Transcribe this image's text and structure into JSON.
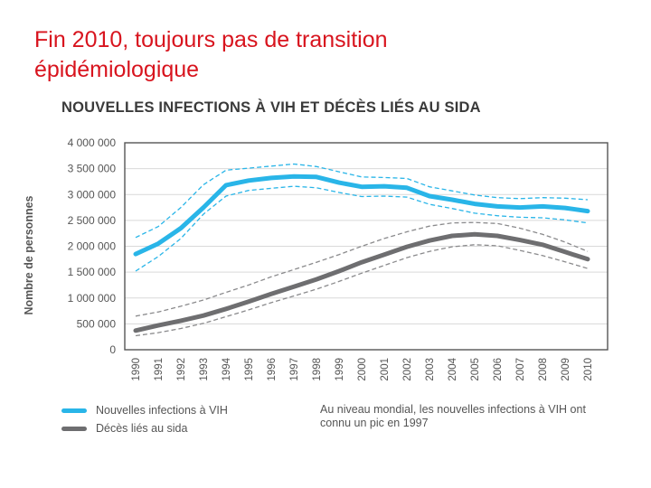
{
  "slide": {
    "title_line1": "Fin 2010, toujours pas de transition",
    "title_line2": "épidémiologique"
  },
  "chart_data": {
    "type": "line",
    "title": "NOUVELLES INFECTIONS À VIH ET DÉCÈS LIÉS AU SIDA",
    "xlabel": "",
    "ylabel": "Nombre de personnes",
    "ylim": [
      0,
      4000000
    ],
    "y_ticks": [
      0,
      500000,
      1000000,
      1500000,
      2000000,
      2500000,
      3000000,
      3500000,
      4000000
    ],
    "y_tick_labels": [
      "0",
      "500 000",
      "1 000 000",
      "1 500 000",
      "2 000 000",
      "2 500 000",
      "3 000 000",
      "3 500 000",
      "4 000 000"
    ],
    "categories": [
      "1990",
      "1991",
      "1992",
      "1993",
      "1994",
      "1995",
      "1996",
      "1997",
      "1998",
      "1999",
      "2000",
      "2001",
      "2002",
      "2003",
      "2004",
      "2005",
      "2006",
      "2007",
      "2008",
      "2009",
      "2010"
    ],
    "grid": "horizontal",
    "series": [
      {
        "name": "Nouvelles infections à VIH",
        "color": "#29b5e8",
        "values": [
          1850000,
          2050000,
          2350000,
          2750000,
          3180000,
          3270000,
          3320000,
          3350000,
          3340000,
          3230000,
          3150000,
          3160000,
          3130000,
          2970000,
          2900000,
          2820000,
          2770000,
          2750000,
          2770000,
          2740000,
          2680000
        ],
        "upper": [
          2170000,
          2380000,
          2750000,
          3190000,
          3470000,
          3510000,
          3550000,
          3590000,
          3540000,
          3440000,
          3340000,
          3330000,
          3310000,
          3150000,
          3070000,
          2990000,
          2940000,
          2920000,
          2940000,
          2930000,
          2900000
        ],
        "lower": [
          1520000,
          1800000,
          2150000,
          2620000,
          2970000,
          3080000,
          3120000,
          3160000,
          3130000,
          3040000,
          2960000,
          2970000,
          2950000,
          2810000,
          2730000,
          2640000,
          2590000,
          2560000,
          2550000,
          2510000,
          2450000
        ]
      },
      {
        "name": "Décès liés au sida",
        "color": "#6e6e70",
        "values": [
          370000,
          470000,
          560000,
          660000,
          790000,
          930000,
          1080000,
          1220000,
          1360000,
          1520000,
          1690000,
          1840000,
          1990000,
          2110000,
          2200000,
          2230000,
          2200000,
          2120000,
          2030000,
          1890000,
          1750000
        ],
        "upper": [
          650000,
          730000,
          840000,
          960000,
          1110000,
          1250000,
          1410000,
          1550000,
          1690000,
          1840000,
          2000000,
          2150000,
          2280000,
          2390000,
          2450000,
          2460000,
          2440000,
          2350000,
          2230000,
          2080000,
          1900000
        ],
        "lower": [
          270000,
          330000,
          410000,
          510000,
          640000,
          770000,
          910000,
          1040000,
          1170000,
          1320000,
          1480000,
          1630000,
          1780000,
          1900000,
          1990000,
          2030000,
          2010000,
          1920000,
          1820000,
          1700000,
          1570000
        ]
      }
    ],
    "annotation": "Au niveau mondial, les nouvelles infections à VIH ont connu un pic en 1997"
  },
  "legend": {
    "vih_label": "Nouvelles infections à VIH",
    "deces_label": "Décès liés au sida",
    "note": "Au niveau mondial, les nouvelles infections à VIH ont connu un pic en 1997"
  },
  "colors": {
    "vih": "#29b5e8",
    "deces": "#6e6e70",
    "title": "#d8141e",
    "axis": "#555555"
  }
}
